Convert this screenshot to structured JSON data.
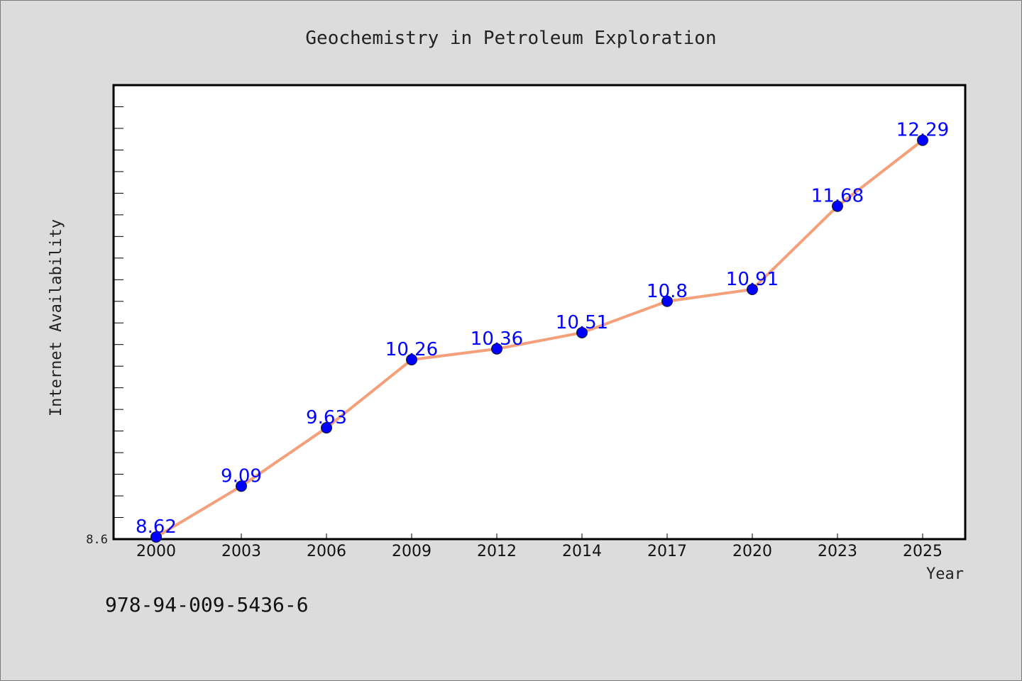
{
  "chart_data": {
    "type": "line",
    "title": "Geochemistry in Petroleum Exploration",
    "xlabel": "Year",
    "ylabel": "Internet Availability",
    "categories": [
      "2000",
      "2003",
      "2006",
      "2009",
      "2012",
      "2014",
      "2017",
      "2020",
      "2023",
      "2025"
    ],
    "series": [
      {
        "values": [
          8.62,
          9.09,
          9.63,
          10.26,
          10.36,
          10.51,
          10.8,
          10.91,
          11.68,
          12.29
        ],
        "color": "#f4a07a",
        "marker_color": "#0000ff"
      }
    ],
    "ytick_labels": [
      "8.6"
    ],
    "ylim": [
      8.6,
      12.8
    ],
    "grid": false,
    "data_labels": true
  },
  "footer": {
    "isbn": "978-94-009-5436-6"
  }
}
